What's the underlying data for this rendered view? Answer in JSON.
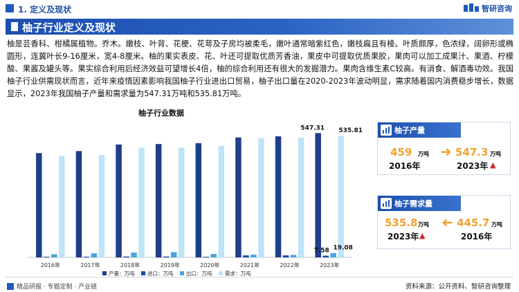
{
  "header": {
    "section_title": "1. 定义及现状",
    "brand": "智研咨询"
  },
  "banner": {
    "title": "柚子行业定义及现状"
  },
  "paragraph": "柚是芸香科、柑橘属植物。乔木。嫩枝、叶背、花梗、花萼及子房均被柔毛，嫩叶通常暗紫红色，嫩枝扁且有棱。叶质颇厚，色浓绿，阔卵形或椭圆形，连冀叶长9-16厘米，宽4-8厘米。柚的果实表皮、花、叶还可提取优质芳香油，果皮中可提取优质果胶，果肉可以加工成果汁、果酒、柠檬酸、果酱及罐头等。果实综合利用后经济效益可望增长4倍，柚的综合利用还有很大的发掘潜力。果肉含维生素C较高。有消食、解酒毒功效。我国柚子行业供需现状而言，近年来疫情因素影响我国柚子行业进出口贸易，柚子出口量在2020-2023年波动明显，需求随着国内消费稳步增长，数据显示，2023年我国柚子产量和需求量为547.31万吨和535.81万吨。",
  "chart_data": {
    "type": "bar",
    "title": "柚子行业数据",
    "categories": [
      "2016年",
      "2017年",
      "2018年",
      "2019年",
      "2020年",
      "2021年",
      "2022年",
      "2023年"
    ],
    "series": [
      {
        "name": "产量：万吨",
        "color": "#1f3e8a",
        "values": [
          459,
          468,
          497,
          499,
          503,
          528,
          533,
          547.31
        ]
      },
      {
        "name": "进口：万吨",
        "color": "#1a4aa8",
        "values": [
          3,
          3,
          4,
          4,
          3,
          9,
          9,
          7.58
        ]
      },
      {
        "name": "出口：万吨",
        "color": "#4aa3e0",
        "values": [
          14,
          18,
          21,
          23,
          15,
          12,
          11,
          19.08
        ]
      },
      {
        "name": "需求：万吨",
        "color": "#bfe3f7",
        "values": [
          445.7,
          451,
          483,
          483,
          491,
          525,
          527,
          535.81
        ]
      }
    ],
    "data_labels": {
      "prod_2023": "547.31",
      "demand_2023": "535.81",
      "import_2023": "7.58",
      "export_2023": "19.08"
    },
    "ylim": [
      0,
      600
    ],
    "grid": false,
    "legend": "bottom"
  },
  "cards": {
    "production": {
      "label": "柚子产量",
      "left_value": "459",
      "left_unit": "万吨",
      "left_year": "2016年",
      "right_value": "547.3",
      "right_unit": "万吨",
      "right_year": "2023年"
    },
    "demand": {
      "label": "柚子需求量",
      "left_value": "535.8",
      "left_unit": "万吨",
      "left_year": "2023年",
      "right_value": "445.7",
      "right_unit": "万吨",
      "right_year": "2016年"
    }
  },
  "footer": {
    "left": "精品研报 · 专题定制 · 产业链",
    "source": "资料来源：公开资料、智研咨询整理"
  }
}
